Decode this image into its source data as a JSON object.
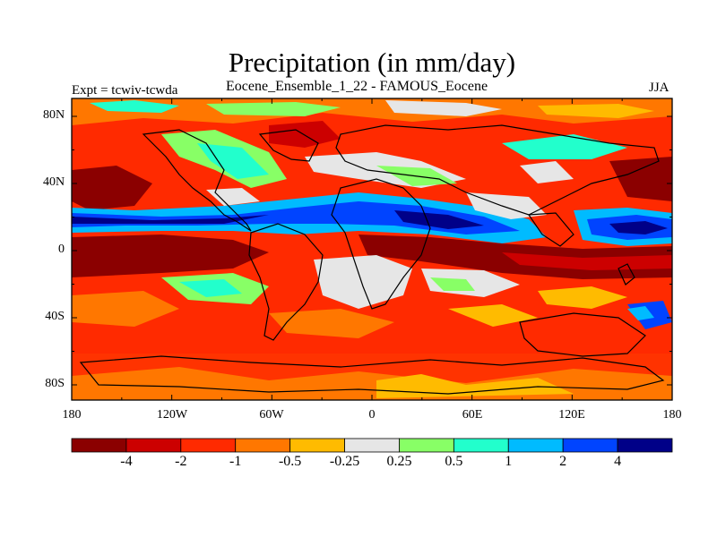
{
  "title": "Precipitation (in mm/day)",
  "left_label": "Expt = tcwiv-tcwda",
  "center_label": "Eocene_Ensemble_1_22 - FAMOUS_Eocene",
  "right_label": "JJA",
  "lat_ticks": [
    "80N",
    "40N",
    "0",
    "40S",
    "80S"
  ],
  "lon_ticks": [
    "180",
    "120W",
    "60W",
    "0",
    "60E",
    "120E",
    "180"
  ],
  "colorbar": {
    "colors": [
      "#8b0000",
      "#cc0000",
      "#ff2a00",
      "#ff7700",
      "#ffbb00",
      "#e6e6e6",
      "#88ff66",
      "#22ffcc",
      "#00bbff",
      "#0044ff",
      "#000088"
    ],
    "labels": [
      "-4",
      "-2",
      "-1",
      "-0.5",
      "-0.25",
      "0.25",
      "0.5",
      "1",
      "2",
      "4"
    ]
  }
}
